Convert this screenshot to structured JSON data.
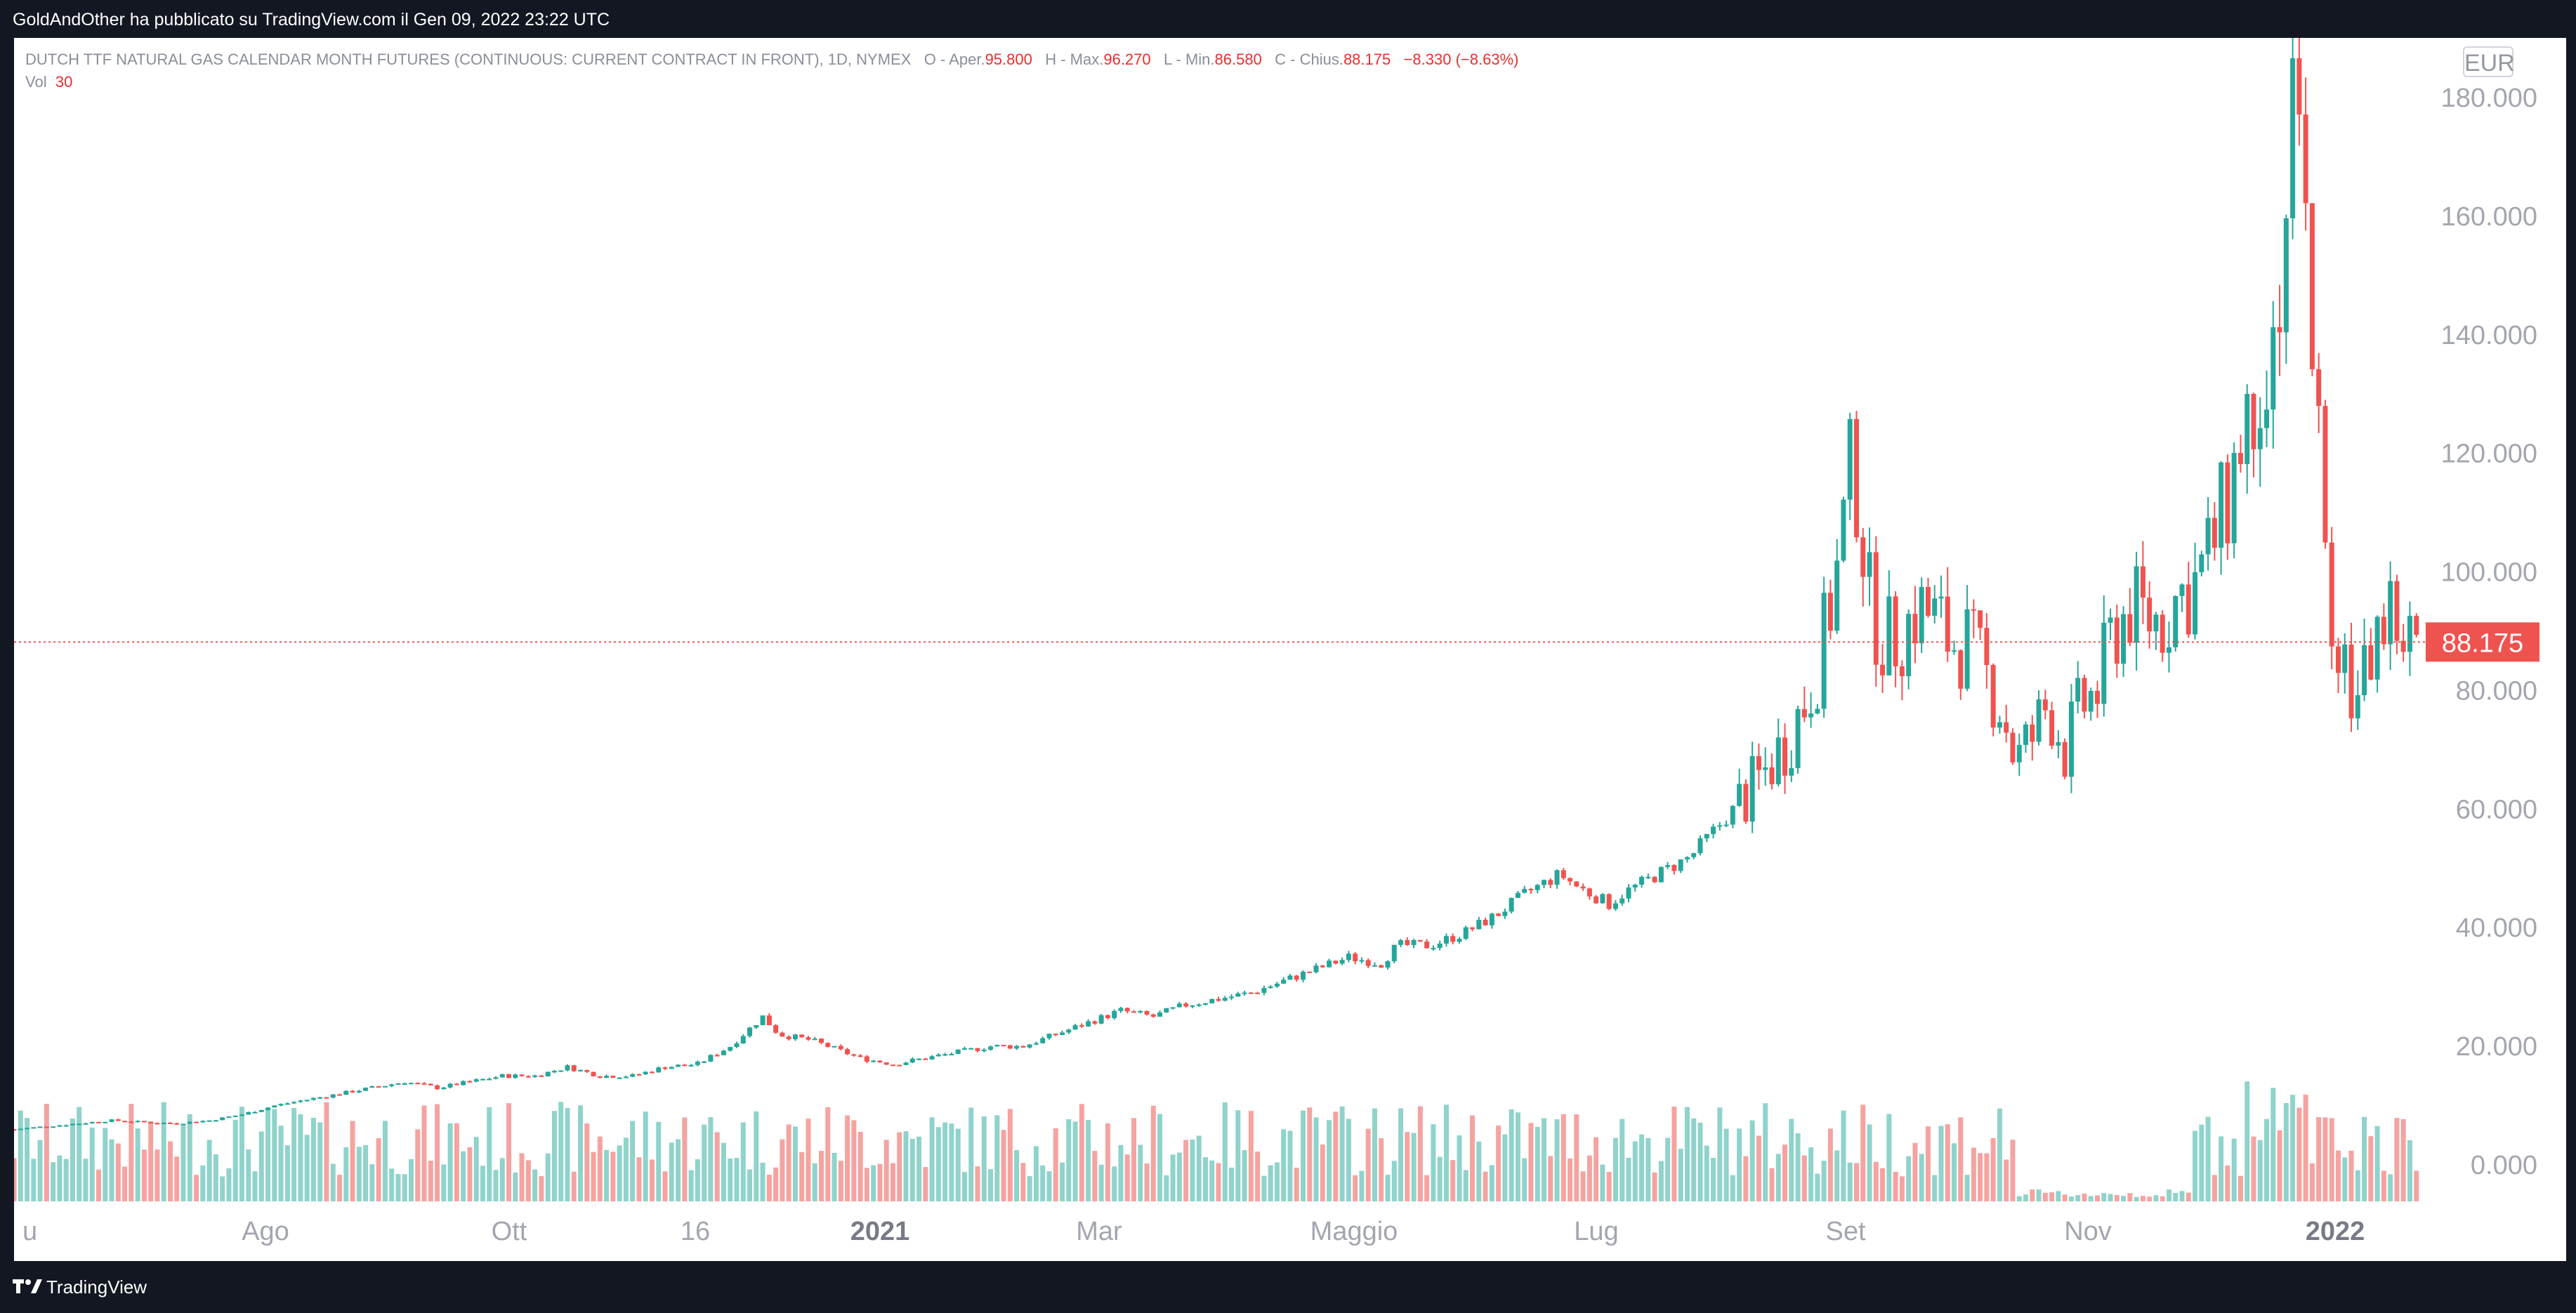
{
  "header": {
    "published": "GoldAndOther ha pubblicato su TradingView.com il Gen 09, 2022 23:22 UTC"
  },
  "legend": {
    "symbol": "DUTCH TTF NATURAL GAS CALENDAR MONTH FUTURES (CONTINUOUS: CURRENT CONTRACT IN FRONT), 1D, NYMEX",
    "o_label": "O - Aper.",
    "o_value": "95.800",
    "h_label": "H - Max.",
    "h_value": "96.270",
    "l_label": "L - Min.",
    "l_value": "86.580",
    "c_label": "C - Chius.",
    "c_value": "88.175",
    "change": "−8.330 (−8.63%)",
    "vol_label": "Vol",
    "vol_value": "30"
  },
  "currency": "EUR",
  "footer": {
    "brand": "TradingView"
  },
  "colors": {
    "up": "#26a69a",
    "down": "#ef5350",
    "up_vol": "#8fd3cb",
    "down_vol": "#f5a3a0",
    "price_line": "#ef5350",
    "axis_text": "#a3a6af"
  },
  "chart_data": {
    "type": "candlestick",
    "y_ticks": [
      "180.000",
      "160.000",
      "140.000",
      "120.000",
      "100.000",
      "80.000",
      "60.000",
      "40.000",
      "20.000",
      "0.000"
    ],
    "ylim": [
      -5,
      184
    ],
    "x_ticks": [
      "u",
      "Ago",
      "Ott",
      "16",
      "2021",
      "Mar",
      "Maggio",
      "Lug",
      "Set",
      "Nov",
      "2022"
    ],
    "x_tick_bold": [
      false,
      false,
      false,
      false,
      true,
      false,
      false,
      false,
      false,
      false,
      true
    ],
    "last_price": 88.175,
    "last_price_label": "88.175",
    "price_path": [
      [
        0,
        6
      ],
      [
        20,
        6.5
      ],
      [
        40,
        7
      ],
      [
        60,
        7.5
      ],
      [
        80,
        7.2
      ],
      [
        100,
        7
      ],
      [
        120,
        7.5
      ],
      [
        140,
        8.5
      ],
      [
        160,
        10
      ],
      [
        180,
        11
      ],
      [
        200,
        12
      ],
      [
        220,
        13
      ],
      [
        240,
        14
      ],
      [
        260,
        13
      ],
      [
        280,
        14
      ],
      [
        300,
        15
      ],
      [
        320,
        15
      ],
      [
        340,
        16.5
      ],
      [
        360,
        15
      ],
      [
        380,
        15
      ],
      [
        400,
        16.5
      ],
      [
        420,
        17
      ],
      [
        440,
        20
      ],
      [
        460,
        25
      ],
      [
        470,
        22
      ],
      [
        490,
        21
      ],
      [
        500,
        20
      ],
      [
        520,
        18
      ],
      [
        540,
        17
      ],
      [
        560,
        18
      ],
      [
        580,
        19
      ],
      [
        600,
        20
      ],
      [
        620,
        20
      ],
      [
        640,
        22
      ],
      [
        660,
        24
      ],
      [
        680,
        26
      ],
      [
        700,
        25
      ],
      [
        720,
        27
      ],
      [
        740,
        28
      ],
      [
        760,
        29
      ],
      [
        780,
        31
      ],
      [
        800,
        33
      ],
      [
        820,
        35
      ],
      [
        840,
        34
      ],
      [
        850,
        37
      ],
      [
        870,
        37
      ],
      [
        890,
        39
      ],
      [
        910,
        42
      ],
      [
        930,
        46
      ],
      [
        950,
        49
      ],
      [
        960,
        47
      ],
      [
        980,
        44
      ],
      [
        990,
        46
      ],
      [
        1010,
        49
      ],
      [
        1030,
        52
      ],
      [
        1050,
        58
      ],
      [
        1070,
        64
      ],
      [
        1080,
        68
      ],
      [
        1090,
        72
      ],
      [
        1100,
        78
      ],
      [
        1110,
        86
      ],
      [
        1120,
        100
      ],
      [
        1130,
        120
      ],
      [
        1140,
        95
      ],
      [
        1150,
        88
      ],
      [
        1160,
        90
      ],
      [
        1170,
        94
      ],
      [
        1180,
        92
      ],
      [
        1190,
        88
      ],
      [
        1200,
        88
      ],
      [
        1220,
        78
      ],
      [
        1230,
        68
      ],
      [
        1240,
        72
      ],
      [
        1250,
        78
      ],
      [
        1260,
        70
      ],
      [
        1270,
        77
      ],
      [
        1280,
        80
      ],
      [
        1290,
        90
      ],
      [
        1300,
        94
      ],
      [
        1310,
        92
      ],
      [
        1320,
        92
      ],
      [
        1330,
        96
      ],
      [
        1340,
        98
      ],
      [
        1350,
        104
      ],
      [
        1360,
        112
      ],
      [
        1370,
        125
      ],
      [
        1380,
        135
      ],
      [
        1390,
        143
      ],
      [
        1400,
        175
      ],
      [
        1410,
        150
      ],
      [
        1420,
        100
      ],
      [
        1430,
        88
      ],
      [
        1440,
        76
      ],
      [
        1450,
        90
      ],
      [
        1460,
        93
      ],
      [
        1470,
        88
      ]
    ]
  }
}
